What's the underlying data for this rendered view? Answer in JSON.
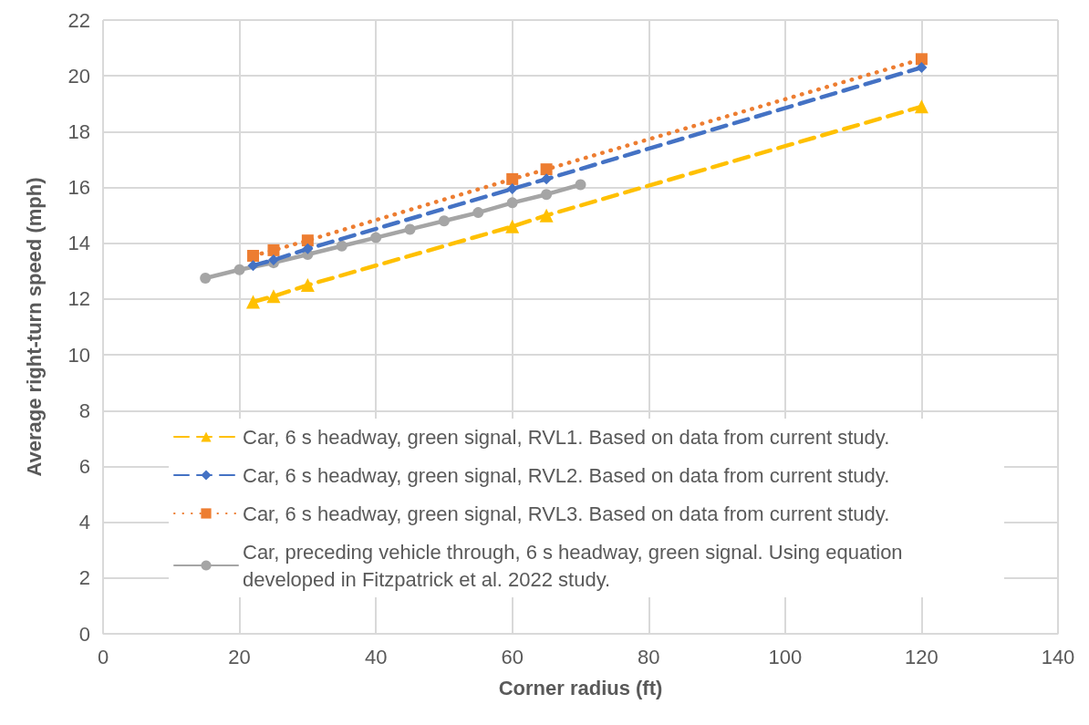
{
  "chart_data": {
    "type": "line",
    "xlabel": "Corner radius (ft)",
    "ylabel": "Average right-turn speed (mph)",
    "xlim": [
      0,
      140
    ],
    "xticks": [
      0,
      20,
      40,
      60,
      80,
      100,
      120,
      140
    ],
    "ylim": [
      0,
      22
    ],
    "yticks": [
      0,
      2,
      4,
      6,
      8,
      10,
      12,
      14,
      16,
      18,
      20,
      22
    ],
    "grid": true,
    "legend": "bottom",
    "series": [
      {
        "name": "Car, 6 s headway, green signal, RVL1. Based on data from current study.",
        "color": "#ffc000",
        "marker": "triangle",
        "line_style": "dashed",
        "x": [
          22,
          25,
          30,
          60,
          65,
          120
        ],
        "values": [
          11.9,
          12.1,
          12.5,
          14.6,
          15.0,
          18.9
        ]
      },
      {
        "name": "Car, 6 s headway, green signal, RVL2. Based on data from current study.",
        "color": "#4472c4",
        "marker": "diamond",
        "line_style": "dashed",
        "x": [
          22,
          25,
          30,
          60,
          65,
          120
        ],
        "values": [
          13.2,
          13.4,
          13.8,
          15.95,
          16.3,
          20.3
        ]
      },
      {
        "name": "Car, 6 s headway, green signal, RVL3. Based on data from current study.",
        "color": "#ed7d31",
        "marker": "square",
        "line_style": "dotted",
        "x": [
          22,
          25,
          30,
          60,
          65,
          120
        ],
        "values": [
          13.55,
          13.75,
          14.1,
          16.3,
          16.65,
          20.6
        ]
      },
      {
        "name": "Car, preceding vehicle through, 6 s headway, green signal. Using equation developed in Fitzpatrick et al. 2022 study.",
        "color": "#a5a5a5",
        "marker": "circle",
        "line_style": "solid",
        "x": [
          15,
          20,
          25,
          30,
          35,
          40,
          45,
          50,
          55,
          60,
          65,
          70
        ],
        "values": [
          12.75,
          13.05,
          13.3,
          13.6,
          13.9,
          14.2,
          14.5,
          14.8,
          15.1,
          15.45,
          15.75,
          16.1
        ]
      }
    ]
  }
}
